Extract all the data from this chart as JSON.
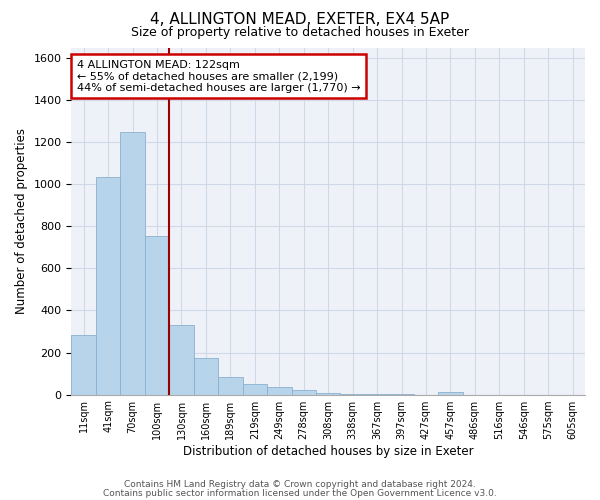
{
  "title": "4, ALLINGTON MEAD, EXETER, EX4 5AP",
  "subtitle": "Size of property relative to detached houses in Exeter",
  "xlabel": "Distribution of detached houses by size in Exeter",
  "ylabel": "Number of detached properties",
  "bar_color": "#b8d4ea",
  "bar_edge_color": "#8ab0d0",
  "bin_labels": [
    "11sqm",
    "41sqm",
    "70sqm",
    "100sqm",
    "130sqm",
    "160sqm",
    "189sqm",
    "219sqm",
    "249sqm",
    "278sqm",
    "308sqm",
    "338sqm",
    "367sqm",
    "397sqm",
    "427sqm",
    "457sqm",
    "486sqm",
    "516sqm",
    "546sqm",
    "575sqm",
    "605sqm"
  ],
  "bar_heights": [
    285,
    1035,
    1250,
    755,
    330,
    175,
    85,
    50,
    37,
    20,
    8,
    2,
    2,
    1,
    0,
    12,
    0,
    0,
    0,
    0,
    0
  ],
  "property_line_bin_index": 3.5,
  "annotation_title": "4 ALLINGTON MEAD: 122sqm",
  "annotation_line1": "← 55% of detached houses are smaller (2,199)",
  "annotation_line2": "44% of semi-detached houses are larger (1,770) →",
  "annotation_box_color": "#ffffff",
  "annotation_box_edge_color": "#cc0000",
  "vline_color": "#990000",
  "ylim": [
    0,
    1650
  ],
  "yticks": [
    0,
    200,
    400,
    600,
    800,
    1000,
    1200,
    1400,
    1600
  ],
  "footer1": "Contains HM Land Registry data © Crown copyright and database right 2024.",
  "footer2": "Contains public sector information licensed under the Open Government Licence v3.0.",
  "background_color": "#ffffff",
  "grid_color": "#d0d8e8"
}
